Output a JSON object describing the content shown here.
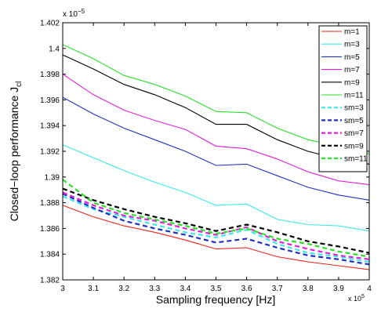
{
  "chart_data": {
    "type": "line",
    "xlabel": "Sampling frequency [Hz]",
    "ylabel_main": "Closed−loop performance J",
    "ylabel_sub": "cl",
    "x_exponent_base": "x 10",
    "x_exponent_power": "5",
    "y_exponent_base": "x 10",
    "y_exponent_power": "−5",
    "xlim": [
      3,
      4
    ],
    "ylim": [
      1.382,
      1.402
    ],
    "x_ticks": [
      "3",
      "3.1",
      "3.2",
      "3.3",
      "3.4",
      "3.5",
      "3.6",
      "3.7",
      "3.8",
      "3.9",
      "4"
    ],
    "y_ticks": [
      "1.382",
      "1.384",
      "1.386",
      "1.388",
      "1.39",
      "1.392",
      "1.394",
      "1.396",
      "1.398",
      "1.4",
      "1.402"
    ],
    "grid": false,
    "legend_position": "top-right",
    "x": [
      3.0,
      3.1,
      3.2,
      3.3,
      3.4,
      3.5,
      3.6,
      3.7,
      3.8,
      3.9,
      4.0
    ],
    "series": [
      {
        "name": "m=1",
        "color": "#e8231f",
        "dashed": false,
        "values": [
          1.3878,
          1.3869,
          1.3862,
          1.3857,
          1.3851,
          1.3844,
          1.3845,
          1.3838,
          1.3834,
          1.3831,
          1.3828
        ]
      },
      {
        "name": "m=3",
        "color": "#3ce8e8",
        "dashed": false,
        "values": [
          1.3925,
          1.3915,
          1.3905,
          1.3896,
          1.3888,
          1.3878,
          1.3879,
          1.3867,
          1.3863,
          1.3862,
          1.3858
        ]
      },
      {
        "name": "m=5",
        "color": "#2030c0",
        "dashed": false,
        "values": [
          1.3962,
          1.3949,
          1.3938,
          1.3929,
          1.392,
          1.3909,
          1.391,
          1.3901,
          1.3892,
          1.3886,
          1.3882
        ]
      },
      {
        "name": "m=7",
        "color": "#e020d8",
        "dashed": false,
        "values": [
          1.398,
          1.3964,
          1.3952,
          1.3944,
          1.3937,
          1.3924,
          1.3922,
          1.3914,
          1.3904,
          1.3897,
          1.3894
        ]
      },
      {
        "name": "m=9",
        "color": "#000000",
        "dashed": false,
        "values": [
          1.3995,
          1.3984,
          1.3972,
          1.3964,
          1.3954,
          1.3941,
          1.3941,
          1.3929,
          1.392,
          1.3914,
          1.391
        ]
      },
      {
        "name": "m=11",
        "color": "#2ce02c",
        "dashed": false,
        "values": [
          1.4003,
          1.3992,
          1.3979,
          1.3972,
          1.3963,
          1.3951,
          1.395,
          1.3938,
          1.3929,
          1.3924,
          1.3918
        ]
      },
      {
        "name": "sm=3",
        "color": "#3ce8e8",
        "dashed": true,
        "values": [
          1.3885,
          1.3875,
          1.3869,
          1.3863,
          1.3857,
          1.3853,
          1.3859,
          1.3848,
          1.3841,
          1.3838,
          1.3834
        ]
      },
      {
        "name": "sm=5",
        "color": "#2030c0",
        "dashed": true,
        "values": [
          1.3887,
          1.3876,
          1.3866,
          1.386,
          1.3855,
          1.3849,
          1.3852,
          1.3845,
          1.3839,
          1.3836,
          1.3832
        ]
      },
      {
        "name": "sm=7",
        "color": "#e020d8",
        "dashed": true,
        "values": [
          1.3888,
          1.3878,
          1.387,
          1.3866,
          1.386,
          1.3855,
          1.3861,
          1.385,
          1.3844,
          1.3839,
          1.3836
        ]
      },
      {
        "name": "sm=9",
        "color": "#000000",
        "dashed": true,
        "values": [
          1.3891,
          1.3882,
          1.3875,
          1.3869,
          1.3864,
          1.3858,
          1.3863,
          1.3857,
          1.385,
          1.3846,
          1.3841
        ]
      },
      {
        "name": "sm=11",
        "color": "#2ce02c",
        "dashed": true,
        "values": [
          1.3898,
          1.388,
          1.3872,
          1.3867,
          1.3862,
          1.3856,
          1.386,
          1.3852,
          1.3848,
          1.3842,
          1.3838
        ]
      }
    ]
  }
}
